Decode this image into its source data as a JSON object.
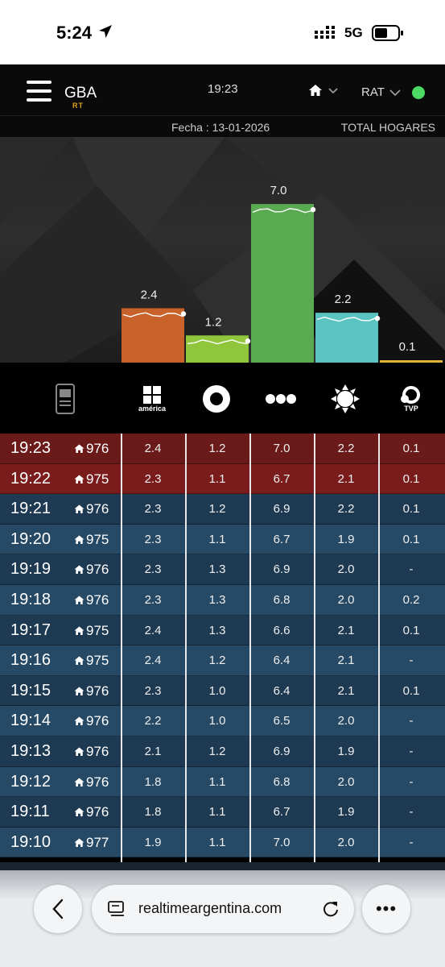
{
  "status_bar": {
    "time": "5:24",
    "network": "5G",
    "icons": [
      "location-arrow-icon",
      "signal-icon",
      "battery-icon"
    ]
  },
  "header": {
    "region": "GBA",
    "region_sub": "RT",
    "time": "19:23",
    "home_icon": "home-icon",
    "metric": "RAT",
    "live_color": "#4cd964"
  },
  "subheader": {
    "fecha": "Fecha : 13-01-2026",
    "scope": "TOTAL HOGARES"
  },
  "chart_data": {
    "type": "bar",
    "categories": [
      "américa",
      "9",
      "Telefe",
      "13",
      "TVP"
    ],
    "values": [
      2.4,
      1.2,
      7.0,
      2.2,
      0.1
    ],
    "colors": [
      "#c8622a",
      "#8fc63c",
      "#5aaa52",
      "#5cc3c3",
      "#e0b43a"
    ],
    "ylim": [
      0,
      8
    ],
    "title": "",
    "xlabel": "",
    "ylabel": ""
  },
  "channels": [
    {
      "name": "phone-chart-icon",
      "label": ""
    },
    {
      "name": "america-logo-icon",
      "label": "américa"
    },
    {
      "name": "channel-9-logo-icon",
      "label": ""
    },
    {
      "name": "telefe-logo-icon",
      "label": ""
    },
    {
      "name": "channel-13-logo-icon",
      "label": ""
    },
    {
      "name": "tvp-logo-icon",
      "label": "TVP"
    }
  ],
  "table": {
    "rows": [
      {
        "time": "19:23",
        "homes": "976",
        "v": [
          "2.4",
          "1.2",
          "7.0",
          "2.2",
          "0.1"
        ]
      },
      {
        "time": "19:22",
        "homes": "975",
        "v": [
          "2.3",
          "1.1",
          "6.7",
          "2.1",
          "0.1"
        ]
      },
      {
        "time": "19:21",
        "homes": "976",
        "v": [
          "2.3",
          "1.2",
          "6.9",
          "2.2",
          "0.1"
        ]
      },
      {
        "time": "19:20",
        "homes": "975",
        "v": [
          "2.3",
          "1.1",
          "6.7",
          "1.9",
          "0.1"
        ]
      },
      {
        "time": "19:19",
        "homes": "976",
        "v": [
          "2.3",
          "1.3",
          "6.9",
          "2.0",
          "-"
        ]
      },
      {
        "time": "19:18",
        "homes": "976",
        "v": [
          "2.3",
          "1.3",
          "6.8",
          "2.0",
          "0.2"
        ]
      },
      {
        "time": "19:17",
        "homes": "975",
        "v": [
          "2.4",
          "1.3",
          "6.6",
          "2.1",
          "0.1"
        ]
      },
      {
        "time": "19:16",
        "homes": "975",
        "v": [
          "2.4",
          "1.2",
          "6.4",
          "2.1",
          "-"
        ]
      },
      {
        "time": "19:15",
        "homes": "976",
        "v": [
          "2.3",
          "1.0",
          "6.4",
          "2.1",
          "0.1"
        ]
      },
      {
        "time": "19:14",
        "homes": "976",
        "v": [
          "2.2",
          "1.0",
          "6.5",
          "2.0",
          "-"
        ]
      },
      {
        "time": "19:13",
        "homes": "976",
        "v": [
          "2.1",
          "1.2",
          "6.9",
          "1.9",
          "-"
        ]
      },
      {
        "time": "19:12",
        "homes": "976",
        "v": [
          "1.8",
          "1.1",
          "6.8",
          "2.0",
          "-"
        ]
      },
      {
        "time": "19:11",
        "homes": "976",
        "v": [
          "1.8",
          "1.1",
          "6.7",
          "1.9",
          "-"
        ]
      },
      {
        "time": "19:10",
        "homes": "977",
        "v": [
          "1.9",
          "1.1",
          "7.0",
          "2.0",
          "-"
        ]
      }
    ]
  },
  "safari": {
    "url": "realtimeargentina.com",
    "more": "•••"
  }
}
